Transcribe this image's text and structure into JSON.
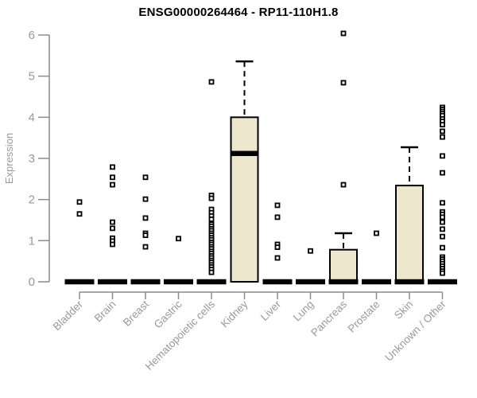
{
  "chart_data": {
    "type": "boxplot",
    "title": "ENSG00000264464 - RP11-110H1.8",
    "ylabel": "Expression",
    "xlabel": "",
    "ylim": [
      0,
      6
    ],
    "yticks": [
      0,
      1,
      2,
      3,
      4,
      5,
      6
    ],
    "grid": false,
    "legend": false,
    "categories": [
      "Bladder",
      "Brain",
      "Breast",
      "Gastric",
      "Hematopoietic cells",
      "Kidney",
      "Liver",
      "Lung",
      "Pancreas",
      "Prostate",
      "Skin",
      "Unknown / Other"
    ],
    "series": [
      {
        "label": "Bladder",
        "q1": 0,
        "median": 0,
        "q3": 0,
        "whisker_low": 0,
        "whisker_high": 0,
        "outliers": [
          1.94,
          1.65
        ]
      },
      {
        "label": "Brain",
        "q1": 0,
        "median": 0,
        "q3": 0,
        "whisker_low": 0,
        "whisker_high": 0,
        "outliers": [
          2.79,
          2.54,
          2.36,
          1.45,
          1.3,
          1.06,
          0.99,
          0.91
        ]
      },
      {
        "label": "Breast",
        "q1": 0,
        "median": 0,
        "q3": 0,
        "whisker_low": 0,
        "whisker_high": 0,
        "outliers": [
          2.54,
          2.01,
          1.55,
          1.18,
          1.13,
          0.85
        ]
      },
      {
        "label": "Gastric",
        "q1": 0,
        "median": 0,
        "q3": 0,
        "whisker_low": 0,
        "whisker_high": 0,
        "outliers": [
          1.05
        ]
      },
      {
        "label": "Hematopoietic cells",
        "q1": 0,
        "median": 0,
        "q3": 0,
        "whisker_low": 0,
        "whisker_high": 0,
        "outliers": [
          4.86,
          2.1,
          2.03,
          1.76,
          1.68,
          1.6,
          1.52,
          1.4,
          1.35,
          1.29,
          1.24,
          1.18,
          1.13,
          1.07,
          1.02,
          0.96,
          0.91,
          0.85,
          0.8,
          0.74,
          0.69,
          0.63,
          0.58,
          0.52,
          0.47,
          0.41,
          0.36,
          0.3,
          0.23
        ]
      },
      {
        "label": "Kidney",
        "q1": 0,
        "median": 3.12,
        "q3": 4.0,
        "whisker_low": 0,
        "whisker_high": 5.36,
        "outliers": []
      },
      {
        "label": "Liver",
        "q1": 0,
        "median": 0,
        "q3": 0,
        "whisker_low": 0,
        "whisker_high": 0,
        "outliers": [
          1.86,
          1.57,
          0.91,
          0.84,
          0.58
        ]
      },
      {
        "label": "Lung",
        "q1": 0,
        "median": 0,
        "q3": 0,
        "whisker_low": 0,
        "whisker_high": 0,
        "outliers": [
          0.75
        ]
      },
      {
        "label": "Pancreas",
        "q1": 0,
        "median": 0,
        "q3": 0.78,
        "whisker_low": 0,
        "whisker_high": 1.18,
        "outliers": [
          6.04,
          4.84,
          2.36
        ]
      },
      {
        "label": "Prostate",
        "q1": 0,
        "median": 0,
        "q3": 0,
        "whisker_low": 0,
        "whisker_high": 0,
        "outliers": [
          1.18
        ]
      },
      {
        "label": "Skin",
        "q1": 0,
        "median": 0,
        "q3": 2.34,
        "whisker_low": 0,
        "whisker_high": 3.27,
        "outliers": []
      },
      {
        "label": "Unknown / Other",
        "q1": 0,
        "median": 0,
        "q3": 0,
        "whisker_low": 0,
        "whisker_high": 0,
        "outliers": [
          4.24,
          4.19,
          4.14,
          4.09,
          4.04,
          3.96,
          3.9,
          3.82,
          3.66,
          3.52,
          3.06,
          2.65,
          1.92,
          1.7,
          1.64,
          1.57,
          1.45,
          1.28,
          1.1,
          0.83,
          0.6,
          0.55,
          0.5,
          0.44,
          0.38,
          0.32,
          0.26,
          0.21
        ]
      }
    ]
  },
  "colors": {
    "box_fill": "#EDE7CD",
    "box_stroke": "#000000",
    "median": "#000000",
    "outlier_stroke": "#000000",
    "outlier_fill": "#FFFFFF",
    "axis_line": "#8C8C8C",
    "text_muted": "#9A9A9A",
    "title": "#000000"
  }
}
